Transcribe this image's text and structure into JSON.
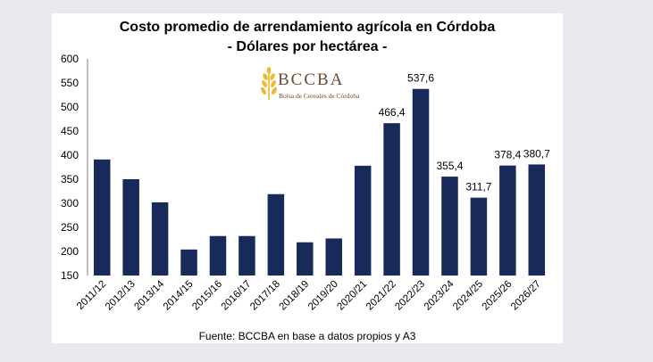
{
  "chart_data": {
    "type": "bar",
    "title": "Costo promedio de arrendamiento agrícola en Córdoba",
    "subtitle": "- Dólares por hectárea -",
    "source": "Fuente: BCCBA en base a datos propios y A3",
    "categories": [
      "2011/12",
      "2012/13",
      "2013/14",
      "2014/15",
      "2015/16",
      "2016/17",
      "2017/18",
      "2018/19",
      "2019/20",
      "2020/21",
      "2021/22",
      "2022/23",
      "2023/24",
      "2024/25",
      "2025/26",
      "2026/27"
    ],
    "values": [
      391,
      350,
      302,
      204,
      232,
      232,
      319,
      219,
      227,
      378,
      466.4,
      537.6,
      355.4,
      311.7,
      378.4,
      380.7
    ],
    "data_labels": [
      "",
      "",
      "",
      "",
      "",
      "",
      "",
      "",
      "",
      "",
      "466,4",
      "537,6",
      "355,4",
      "311,7",
      "378,4",
      "380,7"
    ],
    "yticks": [
      "150",
      "200",
      "250",
      "300",
      "350",
      "400",
      "450",
      "500",
      "550",
      "600"
    ],
    "ylim": [
      150,
      600
    ],
    "grid": false,
    "legend": "none",
    "bar_color": "#172a5a"
  },
  "logo": {
    "name": "BCCBA",
    "tagline": "Bolsa de Cereales de Córdoba",
    "color": "#f2b92c",
    "text_color": "#6b4b2e"
  }
}
